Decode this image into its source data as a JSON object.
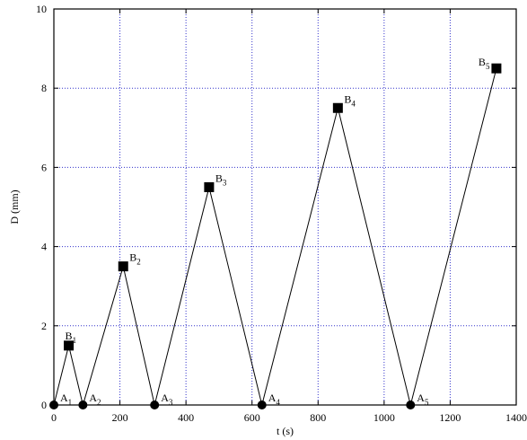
{
  "chart_data": {
    "type": "line",
    "title": "",
    "xlabel": "t (s)",
    "ylabel": "D (mm)",
    "xlim": [
      0,
      1400
    ],
    "ylim": [
      0,
      10
    ],
    "x_ticks": [
      0,
      200,
      400,
      600,
      800,
      1000,
      1200,
      1400
    ],
    "y_ticks": [
      0,
      2,
      4,
      6,
      8,
      10
    ],
    "grid": true,
    "legend": "none",
    "series": [
      {
        "points": [
          {
            "x": 0,
            "y": 0,
            "marker": "circle",
            "label": "A",
            "sub": "1",
            "label_pos": "right-above"
          },
          {
            "x": 45,
            "y": 1.5,
            "marker": "square",
            "label": "B",
            "sub": "1",
            "label_pos": "above-left"
          },
          {
            "x": 88,
            "y": 0,
            "marker": "circle",
            "label": "A",
            "sub": "2",
            "label_pos": "right-above"
          },
          {
            "x": 210,
            "y": 3.5,
            "marker": "square",
            "label": "B",
            "sub": "2",
            "label_pos": "right-above"
          },
          {
            "x": 305,
            "y": 0,
            "marker": "circle",
            "label": "A",
            "sub": "3",
            "label_pos": "right-above"
          },
          {
            "x": 470,
            "y": 5.5,
            "marker": "square",
            "label": "B",
            "sub": "3",
            "label_pos": "right-above"
          },
          {
            "x": 630,
            "y": 0,
            "marker": "circle",
            "label": "A",
            "sub": "4",
            "label_pos": "right-above"
          },
          {
            "x": 860,
            "y": 7.5,
            "marker": "square",
            "label": "B",
            "sub": "4",
            "label_pos": "right-above"
          },
          {
            "x": 1080,
            "y": 0,
            "marker": "circle",
            "label": "A",
            "sub": "5",
            "label_pos": "right-above"
          },
          {
            "x": 1340,
            "y": 8.5,
            "marker": "square",
            "label": "B",
            "sub": "5",
            "label_pos": "left-above"
          }
        ]
      }
    ]
  }
}
